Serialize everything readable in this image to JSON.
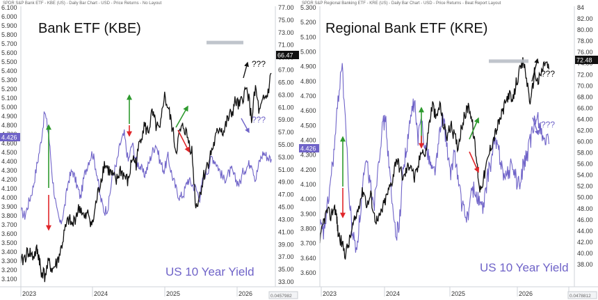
{
  "colors": {
    "etf": "#111111",
    "yield": "#6f63c8",
    "up": "#2e9a2e",
    "down": "#e0262a",
    "resistance": "#b9bfc6",
    "price_badge_bg": "#111111",
    "yield_badge_bg": "#6f63c8"
  },
  "chart_data": [
    {
      "type": "line",
      "header": "SPDR S&P Bank ETF - KBE (US) - Daily Bar Chart - USD - Price Returns - No Layout",
      "title": "Bank ETF (KBE)",
      "overlay_label": "US 10 Year Yield",
      "current_price_label": "66.47",
      "current_yield_label": "4.426",
      "question_black": "???",
      "question_purple": "???",
      "x_labels": [
        "2023",
        "2024",
        "2025",
        "2026"
      ],
      "left_axis_ticks": [
        "6.100",
        "6.000",
        "5.900",
        "5.800",
        "5.700",
        "5.600",
        "5.500",
        "5.400",
        "5.300",
        "5.200",
        "5.100",
        "5.000",
        "4.900",
        "4.800",
        "4.700",
        "4.600",
        "4.500",
        "4.400",
        "4.300",
        "4.200",
        "4.100",
        "4.000",
        "3.900",
        "3.800",
        "3.700",
        "3.600",
        "3.500",
        "3.400",
        "3.300",
        "3.200",
        "3.100"
      ],
      "right_axis_ticks": [
        "77.00",
        "75.00",
        "73.00",
        "71.00",
        "69.00",
        "67.00",
        "65.00",
        "63.00",
        "61.00",
        "59.00",
        "57.00",
        "55.00",
        "53.00",
        "51.00",
        "49.00",
        "47.00",
        "45.00",
        "43.00",
        "41.00",
        "39.00",
        "37.00",
        "35.00",
        "33.00"
      ],
      "footer_value": "0.0457982",
      "left_ylim": [
        3.1,
        6.1
      ],
      "right_ylim": [
        33,
        77
      ],
      "grid": false,
      "series": [
        {
          "name": "Bank ETF (KBE)",
          "axis": "right",
          "x": [
            2022.95,
            2023.0,
            2023.05,
            2023.1,
            2023.15,
            2023.18,
            2023.2,
            2023.25,
            2023.3,
            2023.35,
            2023.4,
            2023.45,
            2023.5,
            2023.55,
            2023.6,
            2023.65,
            2023.7,
            2023.75,
            2023.8,
            2023.85,
            2023.9,
            2023.95,
            2024.0,
            2024.05,
            2024.1,
            2024.15,
            2024.2,
            2024.25,
            2024.3,
            2024.35,
            2024.4,
            2024.45,
            2024.5,
            2024.55,
            2024.6,
            2024.65,
            2024.7,
            2024.75,
            2024.8,
            2024.85,
            2024.9,
            2024.95,
            2025.0,
            2025.05,
            2025.1,
            2025.15,
            2025.2,
            2025.25,
            2025.3,
            2025.35,
            2025.4,
            2025.45,
            2025.5,
            2025.55,
            2025.6,
            2025.65,
            2025.7,
            2025.75,
            2025.8,
            2025.85,
            2025.9,
            2025.95,
            2026.0,
            2026.05,
            2026.1
          ],
          "values": [
            36,
            37,
            38,
            37,
            38,
            37,
            35,
            34,
            36,
            35,
            36,
            38,
            41,
            43,
            42,
            44,
            45,
            43,
            44,
            42,
            46,
            49,
            52,
            51,
            50,
            49,
            51,
            50,
            49,
            53,
            52,
            56,
            58,
            57,
            60,
            58,
            57,
            63,
            61,
            58,
            54,
            57,
            58,
            56,
            54,
            45,
            47,
            50,
            52,
            54,
            56,
            58,
            57,
            59,
            60,
            62,
            61,
            63,
            64,
            59,
            64,
            60,
            62,
            63,
            66.47
          ]
        },
        {
          "name": "US 10 Year Yield",
          "axis": "left",
          "x": [
            2022.95,
            2023.0,
            2023.05,
            2023.1,
            2023.15,
            2023.2,
            2023.25,
            2023.3,
            2023.35,
            2023.4,
            2023.45,
            2023.5,
            2023.55,
            2023.6,
            2023.65,
            2023.7,
            2023.75,
            2023.8,
            2023.85,
            2023.9,
            2023.95,
            2024.0,
            2024.05,
            2024.1,
            2024.15,
            2024.2,
            2024.25,
            2024.3,
            2024.35,
            2024.4,
            2024.45,
            2024.5,
            2024.55,
            2024.6,
            2024.65,
            2024.7,
            2024.75,
            2024.8,
            2024.85,
            2024.9,
            2024.95,
            2025.0,
            2025.05,
            2025.1,
            2025.15,
            2025.2,
            2025.25,
            2025.3,
            2025.35,
            2025.4,
            2025.45,
            2025.5,
            2025.55,
            2025.6,
            2025.65,
            2025.7,
            2025.75,
            2025.8,
            2025.85,
            2025.9,
            2025.95,
            2026.0,
            2026.05,
            2026.1
          ],
          "values": [
            3.85,
            3.8,
            3.95,
            4.1,
            4.35,
            4.6,
            4.95,
            4.7,
            4.2,
            3.85,
            3.7,
            3.9,
            4.2,
            4.3,
            4.15,
            4.0,
            4.25,
            4.4,
            4.5,
            4.3,
            4.0,
            3.85,
            3.9,
            4.25,
            4.35,
            4.6,
            4.7,
            4.4,
            4.6,
            4.4,
            4.35,
            4.25,
            4.35,
            4.5,
            4.6,
            4.4,
            4.3,
            4.45,
            4.25,
            4.1,
            4.0,
            4.05,
            4.2,
            4.15,
            4.1,
            4.0,
            4.25,
            4.3,
            4.45,
            4.4,
            4.3,
            4.2,
            4.25,
            4.3,
            4.2,
            4.15,
            4.3,
            4.35,
            4.4,
            4.2,
            4.4,
            4.5,
            4.45,
            4.426
          ]
        }
      ]
    },
    {
      "type": "line",
      "header": "SPDR S&P Regional Banking ETF - KRE (US) - Daily Bar Chart - USD - Price Returns - Beat Report Layout",
      "title": "Regional Bank ETF (KRE)",
      "overlay_label": "US 10 Year Yield",
      "current_price_label": "72.48",
      "current_yield_label": "4.426",
      "question_black": "???",
      "question_purple": "???",
      "x_labels": [
        "2023",
        "2024",
        "2025",
        "2026",
        "202"
      ],
      "left_axis_ticks": [
        "5.300",
        "5.200",
        "5.100",
        "5.000",
        "4.900",
        "4.800",
        "4.700",
        "4.600",
        "4.500",
        "4.400",
        "4.300",
        "4.200",
        "4.100",
        "4.000",
        "3.900",
        "3.800",
        "3.700",
        "3.640",
        "3.600"
      ],
      "right_axis_ticks": [
        "84",
        "82.00",
        "80.00",
        "78.00",
        "76.00",
        "74.00",
        "72.00",
        "70.00",
        "68.00",
        "66.00",
        "64.00",
        "62.00",
        "60.00",
        "58.00",
        "56.00",
        "54.00",
        "52.00",
        "50.00",
        "48.00",
        "46.00",
        "44.00",
        "42.00",
        "40.00",
        "38.00"
      ],
      "footer_value": "0.0478812",
      "left_ylim": [
        3.6,
        5.3
      ],
      "right_ylim": [
        36,
        84
      ],
      "grid": false,
      "series": [
        {
          "name": "Regional Bank ETF (KRE)",
          "axis": "right",
          "x": [
            2022.95,
            2023.0,
            2023.05,
            2023.1,
            2023.15,
            2023.18,
            2023.2,
            2023.25,
            2023.3,
            2023.35,
            2023.4,
            2023.45,
            2023.5,
            2023.55,
            2023.6,
            2023.65,
            2023.7,
            2023.75,
            2023.8,
            2023.85,
            2023.9,
            2023.95,
            2024.0,
            2024.05,
            2024.1,
            2024.15,
            2024.2,
            2024.25,
            2024.3,
            2024.35,
            2024.4,
            2024.45,
            2024.5,
            2024.55,
            2024.6,
            2024.65,
            2024.7,
            2024.75,
            2024.8,
            2024.85,
            2024.9,
            2024.95,
            2025.0,
            2025.05,
            2025.1,
            2025.15,
            2025.2,
            2025.25,
            2025.3,
            2025.35,
            2025.4,
            2025.45,
            2025.5,
            2025.55,
            2025.6,
            2025.65,
            2025.7,
            2025.75,
            2025.8,
            2025.85,
            2025.9,
            2025.95,
            2026.0,
            2026.05,
            2026.1
          ],
          "values": [
            40,
            44,
            46,
            45,
            47,
            45,
            42,
            40,
            38,
            40,
            43,
            45,
            48,
            50,
            47,
            49,
            45,
            44,
            46,
            48,
            50,
            52,
            56,
            54,
            52,
            54,
            55,
            52,
            54,
            58,
            56,
            62,
            66,
            63,
            66,
            62,
            60,
            62,
            60,
            58,
            62,
            64,
            66,
            62,
            56,
            50,
            52,
            55,
            58,
            60,
            62,
            64,
            66,
            68,
            66,
            70,
            72,
            74,
            70,
            66,
            72,
            70,
            72,
            74,
            72.48
          ]
        },
        {
          "name": "US 10 Year Yield",
          "axis": "left",
          "x": [
            2022.95,
            2023.0,
            2023.05,
            2023.1,
            2023.15,
            2023.2,
            2023.25,
            2023.3,
            2023.35,
            2023.4,
            2023.45,
            2023.5,
            2023.55,
            2023.6,
            2023.65,
            2023.7,
            2023.75,
            2023.8,
            2023.85,
            2023.9,
            2023.95,
            2024.0,
            2024.05,
            2024.1,
            2024.15,
            2024.2,
            2024.25,
            2024.3,
            2024.35,
            2024.4,
            2024.45,
            2024.5,
            2024.55,
            2024.6,
            2024.65,
            2024.7,
            2024.75,
            2024.8,
            2024.85,
            2024.9,
            2024.95,
            2025.0,
            2025.05,
            2025.1,
            2025.15,
            2025.2,
            2025.25,
            2025.3,
            2025.35,
            2025.4,
            2025.45,
            2025.5,
            2025.55,
            2025.6,
            2025.65,
            2025.7,
            2025.75,
            2025.8,
            2025.85,
            2025.9,
            2025.95,
            2026.0,
            2026.05,
            2026.1
          ],
          "values": [
            3.9,
            3.85,
            4.0,
            4.2,
            4.4,
            4.7,
            4.95,
            4.6,
            4.1,
            3.85,
            3.75,
            3.95,
            4.2,
            4.3,
            4.15,
            4.05,
            4.3,
            4.5,
            4.6,
            4.3,
            4.0,
            3.85,
            3.95,
            4.3,
            4.4,
            4.6,
            4.7,
            4.45,
            4.6,
            4.4,
            4.35,
            4.25,
            4.3,
            4.5,
            4.6,
            4.4,
            4.2,
            4.4,
            4.2,
            4.05,
            3.95,
            4.0,
            4.15,
            4.1,
            4.05,
            4.0,
            4.2,
            4.3,
            4.45,
            4.4,
            4.3,
            4.2,
            4.25,
            4.3,
            4.2,
            4.15,
            4.3,
            4.35,
            4.45,
            4.55,
            4.6,
            4.5,
            4.45,
            4.426
          ]
        }
      ]
    }
  ]
}
